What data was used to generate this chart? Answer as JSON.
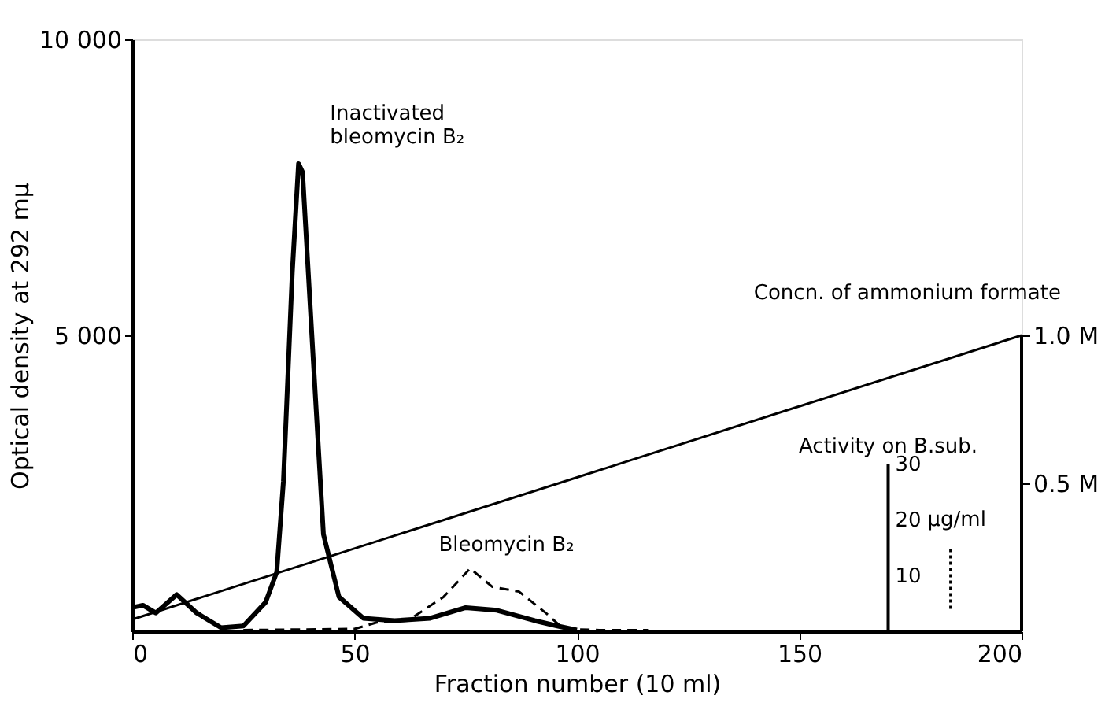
{
  "chart_data": {
    "type": "line",
    "xlabel": "Fraction number (10 ml)",
    "ylabel": "Optical density at 292 mμ",
    "y2label": "Concn. of ammonium formate",
    "y3label": "Activity on B.sub.",
    "xlim": [
      0,
      200
    ],
    "xticks": [
      0,
      50,
      100,
      150,
      200
    ],
    "ylim": [
      0,
      10000
    ],
    "yticks": [
      {
        "value": 5000,
        "label": "5 000"
      },
      {
        "value": 10000,
        "label": "10 000"
      }
    ],
    "y2lim": [
      0,
      2.0
    ],
    "y2ticks": [
      {
        "value": 0.5,
        "label": "0.5 M"
      },
      {
        "value": 1.0,
        "label": "1.0 M"
      }
    ],
    "y3lim": [
      0,
      106
    ],
    "y3ticks": [
      10,
      20,
      30
    ],
    "grid": false,
    "marker": "none",
    "series": [
      {
        "color": "#000000",
        "line_style": "solid",
        "x": [
          0,
          2.4,
          5.3,
          10,
          14.5,
          20,
          25,
          30,
          32.5,
          34,
          36,
          37.4,
          38.3,
          40.6,
          43,
          46.5,
          52,
          59,
          67,
          75,
          82,
          90.5,
          95.6,
          100
        ],
        "values": [
          400,
          440,
          310,
          620,
          310,
          60,
          90,
          490,
          1000,
          2530,
          6070,
          7900,
          7760,
          4740,
          1640,
          580,
          220,
          180,
          220,
          400,
          355,
          180,
          90,
          20
        ]
      },
      {
        "color": "#000000",
        "line_style": "dashed",
        "x": [
          25,
          50,
          55,
          62,
          70,
          76,
          81,
          87,
          93,
          97,
          105,
          116
        ],
        "values": [
          20,
          40,
          150,
          180,
          580,
          1060,
          750,
          670,
          310,
          40,
          20,
          20
        ]
      },
      {
        "color": "#000000",
        "line_style": "solid",
        "axis": "y2",
        "x": [
          0,
          200
        ],
        "values": [
          0.04,
          1.0
        ]
      },
      {
        "color": "#000000",
        "line_style": "dotted",
        "axis": "y3",
        "x": [
          184,
          184
        ],
        "values": [
          4,
          15
        ]
      }
    ],
    "ref_lines": [
      {
        "axis": "x",
        "value": 170
      }
    ],
    "annotations": [
      {
        "text": "Inactivated\nbleomycin B₂",
        "x": 37.4,
        "y": 7900
      },
      {
        "text": "Bleomycin B₂",
        "x": 76,
        "y": 1060
      },
      "μg/ml"
    ]
  }
}
